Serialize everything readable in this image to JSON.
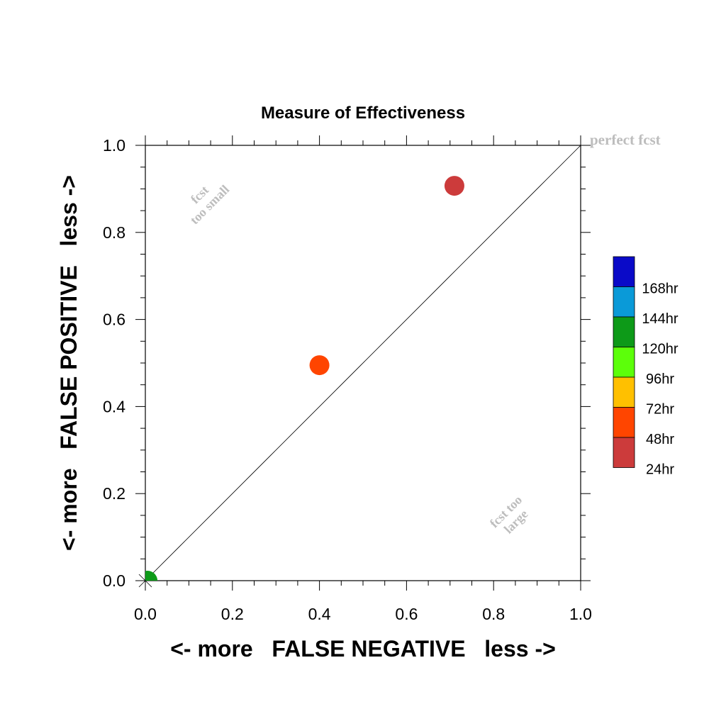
{
  "chart_data": {
    "type": "scatter",
    "title": "Measure of Effectiveness",
    "xlabel": "<- more   FALSE NEGATIVE   less ->",
    "ylabel": "<- more   FALSE POSITIVE   less ->",
    "xlim": [
      0.0,
      1.0
    ],
    "ylim": [
      0.0,
      1.0
    ],
    "x_ticks": [
      "0.0",
      "0.2",
      "0.4",
      "0.6",
      "0.8",
      "1.0"
    ],
    "y_ticks": [
      "0.0",
      "0.2",
      "0.4",
      "0.6",
      "0.8",
      "1.0"
    ],
    "reference_line": {
      "from": [
        0,
        0
      ],
      "to": [
        1,
        1
      ]
    },
    "annotations": {
      "perfect": "perfect fcst",
      "small_line1": "fcst",
      "small_line2": "too small",
      "large_line1": "fcst too",
      "large_line2": "large"
    },
    "points": [
      {
        "lead": "24hr",
        "x": 0.71,
        "y": 0.907,
        "color": "#cc3b3b"
      },
      {
        "lead": "48hr",
        "x": 0.4,
        "y": 0.495,
        "color": "#ff4500"
      },
      {
        "lead": "120hr",
        "x": 0.005,
        "y": 0.0,
        "color": "#0d9a18"
      }
    ],
    "legend": {
      "placement": "right",
      "items": [
        {
          "label": "168hr",
          "color": "#0a0ac8"
        },
        {
          "label": "144hr",
          "color": "#0a9ad8"
        },
        {
          "label": "120hr",
          "color": "#0d9a18"
        },
        {
          "label": "96hr",
          "color": "#5cff0a"
        },
        {
          "label": "72hr",
          "color": "#ffc000"
        },
        {
          "label": "48hr",
          "color": "#ff4500"
        },
        {
          "label": "24hr",
          "color": "#cc3b3b"
        }
      ]
    }
  }
}
